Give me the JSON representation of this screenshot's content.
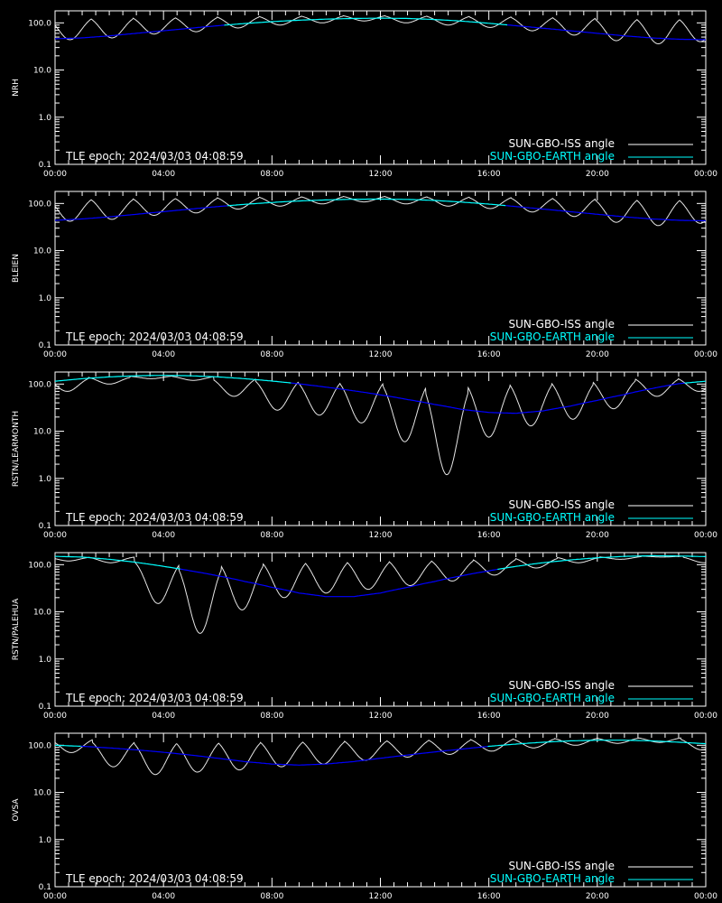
{
  "figure": {
    "epoch_label": "TLE epoch: 2024/03/03 04:08:59"
  },
  "chart_data": [
    {
      "type": "line",
      "ylabel": "NRH",
      "yscale": "log",
      "ylim": [
        0.1,
        180
      ],
      "xlim": [
        0,
        24
      ],
      "xticks": [
        "00:00",
        "04:00",
        "08:00",
        "12:00",
        "16:00",
        "20:00",
        "00:00"
      ],
      "yticks": [
        "100.0",
        "10.0",
        "1.0",
        "0.1"
      ],
      "legend": {
        "position": "bottom-right",
        "entries": [
          "SUN-GBO-ISS angle",
          "SUN-GBO-EARTH angle"
        ]
      },
      "series": [
        {
          "name": "SUN-GBO-EARTH angle",
          "x": [
            0,
            1,
            2,
            3,
            4,
            5,
            6,
            7,
            8,
            9,
            10,
            11,
            12,
            13,
            14,
            15,
            16,
            17,
            18,
            19,
            20,
            21,
            22,
            23,
            24
          ],
          "y": [
            46,
            48,
            53,
            60,
            68,
            77,
            87,
            97,
            106,
            114,
            120,
            124,
            126,
            124,
            118,
            109,
            98,
            87,
            77,
            68,
            60,
            53,
            48,
            45,
            44
          ],
          "color_below": "#0000ff",
          "color_above": "#00ffff",
          "switch_value": 90
        },
        {
          "name": "SUN-GBO-ISS angle",
          "orbit_dips": [
            {
              "t": 0.55,
              "min": 44
            },
            {
              "t": 2.1,
              "min": 48
            },
            {
              "t": 3.65,
              "min": 58
            },
            {
              "t": 5.2,
              "min": 65
            },
            {
              "t": 6.75,
              "min": 78
            },
            {
              "t": 8.3,
              "min": 90
            },
            {
              "t": 9.85,
              "min": 100
            },
            {
              "t": 11.4,
              "min": 110
            },
            {
              "t": 12.95,
              "min": 100
            },
            {
              "t": 14.5,
              "min": 90
            },
            {
              "t": 16.05,
              "min": 80
            },
            {
              "t": 17.6,
              "min": 68
            },
            {
              "t": 19.15,
              "min": 55
            },
            {
              "t": 20.7,
              "min": 42
            },
            {
              "t": 22.25,
              "min": 36
            },
            {
              "t": 23.8,
              "min": 40
            }
          ],
          "color": "#ffffff"
        }
      ]
    },
    {
      "type": "line",
      "ylabel": "BLEIEN",
      "yscale": "log",
      "ylim": [
        0.1,
        180
      ],
      "xlim": [
        0,
        24
      ],
      "xticks": [
        "00:00",
        "04:00",
        "08:00",
        "12:00",
        "16:00",
        "20:00",
        "00:00"
      ],
      "yticks": [
        "100.0",
        "10.0",
        "1.0",
        "0.1"
      ],
      "legend": {
        "position": "bottom-right",
        "entries": [
          "SUN-GBO-ISS angle",
          "SUN-GBO-EARTH angle"
        ]
      },
      "series": [
        {
          "name": "SUN-GBO-EARTH angle",
          "x": [
            0,
            1,
            2,
            3,
            4,
            5,
            6,
            7,
            8,
            9,
            10,
            11,
            12,
            13,
            14,
            15,
            16,
            17,
            18,
            19,
            20,
            21,
            22,
            23,
            24
          ],
          "y": [
            44,
            47,
            52,
            59,
            67,
            76,
            86,
            96,
            105,
            113,
            119,
            123,
            124,
            122,
            116,
            107,
            97,
            86,
            76,
            67,
            59,
            52,
            47,
            44,
            43
          ],
          "color_below": "#0000ff",
          "color_above": "#00ffff",
          "switch_value": 90
        },
        {
          "name": "SUN-GBO-ISS angle",
          "orbit_dips": [
            {
              "t": 0.55,
              "min": 42
            },
            {
              "t": 2.1,
              "min": 46
            },
            {
              "t": 3.65,
              "min": 56
            },
            {
              "t": 5.2,
              "min": 63
            },
            {
              "t": 6.75,
              "min": 76
            },
            {
              "t": 8.3,
              "min": 88
            },
            {
              "t": 9.85,
              "min": 98
            },
            {
              "t": 11.4,
              "min": 108
            },
            {
              "t": 12.95,
              "min": 98
            },
            {
              "t": 14.5,
              "min": 88
            },
            {
              "t": 16.05,
              "min": 78
            },
            {
              "t": 17.6,
              "min": 66
            },
            {
              "t": 19.15,
              "min": 53
            },
            {
              "t": 20.7,
              "min": 40
            },
            {
              "t": 22.25,
              "min": 34
            },
            {
              "t": 23.8,
              "min": 38
            }
          ],
          "color": "#ffffff"
        }
      ]
    },
    {
      "type": "line",
      "ylabel": "RSTN/LEARMONTH",
      "yscale": "log",
      "ylim": [
        0.1,
        180
      ],
      "xlim": [
        0,
        24
      ],
      "xticks": [
        "00:00",
        "04:00",
        "08:00",
        "12:00",
        "16:00",
        "20:00",
        "00:00"
      ],
      "yticks": [
        "100.0",
        "10.0",
        "1.0",
        "0.1"
      ],
      "legend": {
        "position": "bottom-right",
        "entries": [
          "SUN-GBO-ISS angle",
          "SUN-GBO-EARTH angle"
        ]
      },
      "series": [
        {
          "name": "SUN-GBO-EARTH angle",
          "x": [
            0,
            1,
            2,
            3,
            4,
            5,
            6,
            7,
            8,
            9,
            10,
            11,
            12,
            13,
            14,
            15,
            16,
            17,
            18,
            19,
            20,
            21,
            22,
            23,
            24
          ],
          "y": [
            115,
            130,
            142,
            150,
            153,
            150,
            142,
            130,
            116,
            101,
            86,
            72,
            59,
            47,
            37,
            29,
            25,
            24,
            27,
            34,
            45,
            60,
            80,
            102,
            115
          ],
          "color_below": "#0000ff",
          "color_above": "#00ffff",
          "switch_value": 105
        },
        {
          "name": "SUN-GBO-ISS angle",
          "orbit_dips": [
            {
              "t": 0.45,
              "min": 70
            },
            {
              "t": 2.0,
              "min": 100
            },
            {
              "t": 3.55,
              "min": 130
            },
            {
              "t": 5.1,
              "min": 120
            },
            {
              "t": 6.6,
              "min": 55
            },
            {
              "t": 8.2,
              "min": 28
            },
            {
              "t": 9.75,
              "min": 22
            },
            {
              "t": 11.3,
              "min": 15
            },
            {
              "t": 12.9,
              "min": 6
            },
            {
              "t": 14.45,
              "min": 1.2
            },
            {
              "t": 16.0,
              "min": 7.5
            },
            {
              "t": 17.55,
              "min": 13
            },
            {
              "t": 19.1,
              "min": 18
            },
            {
              "t": 20.6,
              "min": 30
            },
            {
              "t": 22.2,
              "min": 55
            },
            {
              "t": 23.75,
              "min": 70
            }
          ],
          "color": "#ffffff"
        }
      ]
    },
    {
      "type": "line",
      "ylabel": "RSTN/PALEHUA",
      "yscale": "log",
      "ylim": [
        0.1,
        180
      ],
      "xlim": [
        0,
        24
      ],
      "xticks": [
        "00:00",
        "04:00",
        "08:00",
        "12:00",
        "16:00",
        "20:00",
        "00:00"
      ],
      "yticks": [
        "100.0",
        "10.0",
        "1.0",
        "0.1"
      ],
      "legend": {
        "position": "bottom-right",
        "entries": [
          "SUN-GBO-ISS angle",
          "SUN-GBO-EARTH angle"
        ]
      },
      "series": [
        {
          "name": "SUN-GBO-EARTH angle",
          "x": [
            0,
            1,
            2,
            3,
            4,
            5,
            6,
            7,
            8,
            9,
            10,
            11,
            12,
            13,
            14,
            15,
            16,
            17,
            18,
            19,
            20,
            21,
            22,
            23,
            24
          ],
          "y": [
            150,
            145,
            130,
            112,
            92,
            74,
            58,
            44,
            33,
            25,
            21,
            21,
            25,
            33,
            44,
            58,
            74,
            92,
            110,
            126,
            140,
            150,
            155,
            153,
            148
          ],
          "color_below": "#0000ff",
          "color_above": "#00ffff",
          "switch_value": 80
        },
        {
          "name": "SUN-GBO-ISS angle",
          "orbit_dips": [
            {
              "t": 0.5,
              "min": 120
            },
            {
              "t": 2.05,
              "min": 110
            },
            {
              "t": 3.8,
              "min": 15
            },
            {
              "t": 5.35,
              "min": 3.5
            },
            {
              "t": 6.9,
              "min": 11
            },
            {
              "t": 8.45,
              "min": 20
            },
            {
              "t": 10.0,
              "min": 25
            },
            {
              "t": 11.55,
              "min": 30
            },
            {
              "t": 13.1,
              "min": 36
            },
            {
              "t": 14.65,
              "min": 45
            },
            {
              "t": 16.2,
              "min": 60
            },
            {
              "t": 17.75,
              "min": 85
            },
            {
              "t": 19.3,
              "min": 110
            },
            {
              "t": 20.85,
              "min": 130
            },
            {
              "t": 22.4,
              "min": 145
            },
            {
              "t": 23.95,
              "min": 110
            }
          ],
          "color": "#ffffff"
        }
      ]
    },
    {
      "type": "line",
      "ylabel": "OVSA",
      "yscale": "log",
      "ylim": [
        0.1,
        180
      ],
      "xlim": [
        0,
        24
      ],
      "xticks": [
        "00:00",
        "04:00",
        "08:00",
        "12:00",
        "16:00",
        "20:00",
        "00:00"
      ],
      "yticks": [
        "100.0",
        "10.0",
        "1.0",
        "0.1"
      ],
      "legend": {
        "position": "bottom-right",
        "entries": [
          "SUN-GBO-ISS angle",
          "SUN-GBO-EARTH angle"
        ]
      },
      "series": [
        {
          "name": "SUN-GBO-EARTH angle",
          "x": [
            0,
            1,
            2,
            3,
            4,
            5,
            6,
            7,
            8,
            9,
            10,
            11,
            12,
            13,
            14,
            15,
            16,
            17,
            18,
            19,
            20,
            21,
            22,
            23,
            24
          ],
          "y": [
            100,
            95,
            88,
            80,
            71,
            62,
            53,
            45,
            40,
            38,
            40,
            45,
            53,
            62,
            72,
            83,
            95,
            106,
            116,
            124,
            128,
            128,
            124,
            116,
            108
          ],
          "color_below": "#0000ff",
          "color_above": "#00ffff",
          "switch_value": 95
        },
        {
          "name": "SUN-GBO-ISS angle",
          "orbit_dips": [
            {
              "t": 0.6,
              "min": 70
            },
            {
              "t": 2.15,
              "min": 35
            },
            {
              "t": 3.7,
              "min": 24
            },
            {
              "t": 5.25,
              "min": 27
            },
            {
              "t": 6.8,
              "min": 30
            },
            {
              "t": 8.35,
              "min": 35
            },
            {
              "t": 9.9,
              "min": 40
            },
            {
              "t": 11.45,
              "min": 48
            },
            {
              "t": 13.0,
              "min": 56
            },
            {
              "t": 14.55,
              "min": 64
            },
            {
              "t": 16.1,
              "min": 75
            },
            {
              "t": 17.65,
              "min": 88
            },
            {
              "t": 19.2,
              "min": 100
            },
            {
              "t": 20.75,
              "min": 110
            },
            {
              "t": 22.3,
              "min": 115
            },
            {
              "t": 23.85,
              "min": 80
            }
          ],
          "color": "#ffffff"
        }
      ]
    }
  ]
}
